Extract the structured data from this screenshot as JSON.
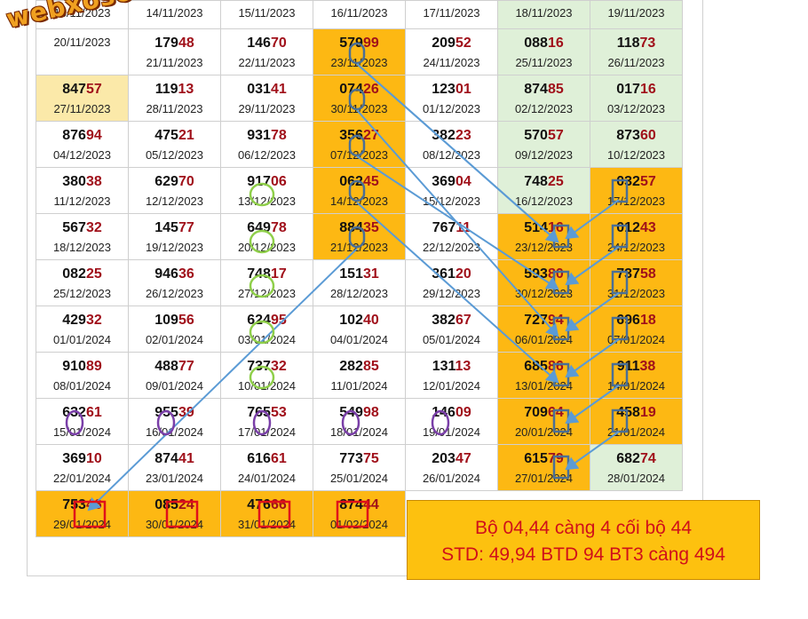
{
  "watermark": "webxoso.net",
  "note": {
    "line1": "Bộ 04,44  càng 4 cối bộ 44",
    "line2": "STD: 49,94 BTD 94 BT3 càng 494"
  },
  "colors": {
    "highlight": "#fdb813",
    "weekend": "#dff0d8",
    "tail_digits": "#a0101a",
    "arrow": "#5b9bd5",
    "green_ring": "#8fcf4a",
    "purple_ring": "#7a3fa8",
    "red_box": "#e0101a"
  },
  "rows": [
    [
      {
        "h": "",
        "t": "",
        "d": "13/11/2023"
      },
      {
        "h": "",
        "t": "",
        "d": "14/11/2023"
      },
      {
        "h": "",
        "t": "",
        "d": "15/11/2023"
      },
      {
        "h": "",
        "t": "",
        "d": "16/11/2023"
      },
      {
        "h": "",
        "t": "",
        "d": "17/11/2023"
      },
      {
        "h": "",
        "t": "",
        "d": "18/11/2023"
      },
      {
        "h": "",
        "t": "",
        "d": "19/11/2023"
      }
    ],
    [
      {
        "h": "",
        "t": "",
        "d": "20/11/2023"
      },
      {
        "h": "179",
        "t": "48",
        "d": "21/11/2023"
      },
      {
        "h": "146",
        "t": "70",
        "d": "22/11/2023"
      },
      {
        "h": "579",
        "t": "99",
        "d": "23/11/2023"
      },
      {
        "h": "209",
        "t": "52",
        "d": "24/11/2023"
      },
      {
        "h": "088",
        "t": "16",
        "d": "25/11/2023"
      },
      {
        "h": "118",
        "t": "73",
        "d": "26/11/2023"
      }
    ],
    [
      {
        "h": "847",
        "t": "57",
        "d": "27/11/2023"
      },
      {
        "h": "119",
        "t": "13",
        "d": "28/11/2023"
      },
      {
        "h": "031",
        "t": "41",
        "d": "29/11/2023"
      },
      {
        "h": "074",
        "t": "26",
        "d": "30/11/2023"
      },
      {
        "h": "123",
        "t": "01",
        "d": "01/12/2023"
      },
      {
        "h": "874",
        "t": "85",
        "d": "02/12/2023"
      },
      {
        "h": "017",
        "t": "16",
        "d": "03/12/2023"
      }
    ],
    [
      {
        "h": "876",
        "t": "94",
        "d": "04/12/2023"
      },
      {
        "h": "475",
        "t": "21",
        "d": "05/12/2023"
      },
      {
        "h": "931",
        "t": "78",
        "d": "06/12/2023"
      },
      {
        "h": "356",
        "t": "27",
        "d": "07/12/2023"
      },
      {
        "h": "382",
        "t": "23",
        "d": "08/12/2023"
      },
      {
        "h": "570",
        "t": "57",
        "d": "09/12/2023"
      },
      {
        "h": "873",
        "t": "60",
        "d": "10/12/2023"
      }
    ],
    [
      {
        "h": "380",
        "t": "38",
        "d": "11/12/2023"
      },
      {
        "h": "629",
        "t": "70",
        "d": "12/12/2023"
      },
      {
        "h": "917",
        "t": "06",
        "d": "13/12/2023"
      },
      {
        "h": "062",
        "t": "45",
        "d": "14/12/2023"
      },
      {
        "h": "369",
        "t": "04",
        "d": "15/12/2023"
      },
      {
        "h": "748",
        "t": "25",
        "d": "16/12/2023"
      },
      {
        "h": "032",
        "t": "57",
        "d": "17/12/2023"
      }
    ],
    [
      {
        "h": "567",
        "t": "32",
        "d": "18/12/2023"
      },
      {
        "h": "145",
        "t": "77",
        "d": "19/12/2023"
      },
      {
        "h": "649",
        "t": "78",
        "d": "20/12/2023"
      },
      {
        "h": "884",
        "t": "35",
        "d": "21/12/2023"
      },
      {
        "h": "767",
        "t": "11",
        "d": "22/12/2023"
      },
      {
        "h": "514",
        "t": "16",
        "d": "23/12/2023"
      },
      {
        "h": "012",
        "t": "43",
        "d": "24/12/2023"
      }
    ],
    [
      {
        "h": "082",
        "t": "25",
        "d": "25/12/2023"
      },
      {
        "h": "946",
        "t": "36",
        "d": "26/12/2023"
      },
      {
        "h": "748",
        "t": "17",
        "d": "27/12/2023"
      },
      {
        "h": "151",
        "t": "31",
        "d": "28/12/2023"
      },
      {
        "h": "361",
        "t": "20",
        "d": "29/12/2023"
      },
      {
        "h": "593",
        "t": "80",
        "d": "30/12/2023"
      },
      {
        "h": "737",
        "t": "58",
        "d": "31/12/2023"
      }
    ],
    [
      {
        "h": "429",
        "t": "32",
        "d": "01/01/2024"
      },
      {
        "h": "109",
        "t": "56",
        "d": "02/01/2024"
      },
      {
        "h": "624",
        "t": "95",
        "d": "03/01/2024"
      },
      {
        "h": "102",
        "t": "40",
        "d": "04/01/2024"
      },
      {
        "h": "382",
        "t": "67",
        "d": "05/01/2024"
      },
      {
        "h": "727",
        "t": "94",
        "d": "06/01/2024"
      },
      {
        "h": "696",
        "t": "18",
        "d": "07/01/2024"
      }
    ],
    [
      {
        "h": "910",
        "t": "89",
        "d": "08/01/2024"
      },
      {
        "h": "488",
        "t": "77",
        "d": "09/01/2024"
      },
      {
        "h": "737",
        "t": "32",
        "d": "10/01/2024"
      },
      {
        "h": "282",
        "t": "85",
        "d": "11/01/2024"
      },
      {
        "h": "131",
        "t": "13",
        "d": "12/01/2024"
      },
      {
        "h": "685",
        "t": "86",
        "d": "13/01/2024"
      },
      {
        "h": "911",
        "t": "38",
        "d": "14/01/2024"
      }
    ],
    [
      {
        "h": "632",
        "t": "61",
        "d": "15/01/2024"
      },
      {
        "h": "955",
        "t": "39",
        "d": "16/01/2024"
      },
      {
        "h": "765",
        "t": "53",
        "d": "17/01/2024"
      },
      {
        "h": "549",
        "t": "98",
        "d": "18/01/2024"
      },
      {
        "h": "146",
        "t": "09",
        "d": "19/01/2024"
      },
      {
        "h": "709",
        "t": "64",
        "d": "20/01/2024"
      },
      {
        "h": "458",
        "t": "19",
        "d": "21/01/2024"
      }
    ],
    [
      {
        "h": "369",
        "t": "10",
        "d": "22/01/2024"
      },
      {
        "h": "874",
        "t": "41",
        "d": "23/01/2024"
      },
      {
        "h": "616",
        "t": "61",
        "d": "24/01/2024"
      },
      {
        "h": "773",
        "t": "75",
        "d": "25/01/2024"
      },
      {
        "h": "203",
        "t": "47",
        "d": "26/01/2024"
      },
      {
        "h": "615",
        "t": "79",
        "d": "27/01/2024"
      },
      {
        "h": "682",
        "t": "74",
        "d": "28/01/2024"
      }
    ],
    [
      {
        "h": "753",
        "t": "46",
        "d": "29/01/2024"
      },
      {
        "h": "085",
        "t": "24",
        "d": "30/01/2024"
      },
      {
        "h": "476",
        "t": "66",
        "d": "31/01/2024"
      },
      {
        "h": "874",
        "t": "44",
        "d": "01/02/2024"
      },
      {
        "h": "",
        "t": "",
        "d": ""
      },
      {
        "h": "",
        "t": "",
        "d": ""
      },
      {
        "h": "",
        "t": "",
        "d": ""
      }
    ]
  ]
}
